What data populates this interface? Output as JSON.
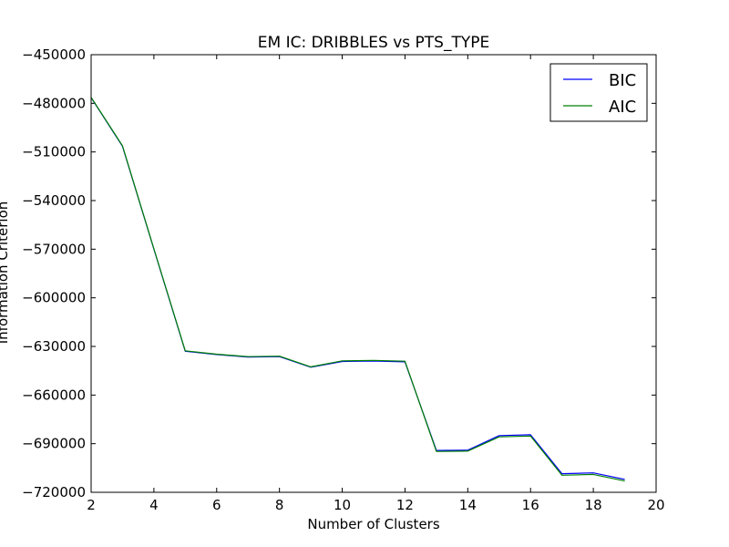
{
  "chart_data": {
    "type": "line",
    "title": "EM IC: DRIBBLES vs PTS_TYPE",
    "xlabel": "Number of Clusters",
    "ylabel": "Information Criterion",
    "xlim": [
      2,
      20
    ],
    "ylim": [
      -720000,
      -450000
    ],
    "xticks": [
      2,
      4,
      6,
      8,
      10,
      12,
      14,
      16,
      18,
      20
    ],
    "yticks": [
      -450000,
      -480000,
      -510000,
      -540000,
      -570000,
      -600000,
      -630000,
      -660000,
      -690000,
      -720000
    ],
    "xtick_labels": [
      "2",
      "4",
      "6",
      "8",
      "10",
      "12",
      "14",
      "16",
      "18",
      "20"
    ],
    "ytick_labels": [
      "−450000",
      "−480000",
      "−510000",
      "−540000",
      "−570000",
      "−600000",
      "−630000",
      "−660000",
      "−690000",
      "−720000"
    ],
    "x": [
      2,
      3,
      4,
      5,
      6,
      7,
      8,
      9,
      10,
      11,
      12,
      13,
      14,
      15,
      16,
      17,
      18,
      19
    ],
    "series": [
      {
        "name": "BIC",
        "color": "#0000ff",
        "values": [
          -476500,
          -506500,
          -570000,
          -633000,
          -635000,
          -636500,
          -636300,
          -642800,
          -639300,
          -639000,
          -639500,
          -694200,
          -694000,
          -685000,
          -684500,
          -708500,
          -708000,
          -712000
        ]
      },
      {
        "name": "AIC",
        "color": "#008000",
        "values": [
          -476300,
          -506200,
          -569800,
          -632700,
          -634800,
          -636300,
          -636000,
          -642600,
          -638900,
          -638600,
          -639100,
          -694800,
          -694600,
          -685800,
          -685300,
          -709500,
          -709000,
          -713000
        ]
      }
    ],
    "legend": {
      "position": "top-right",
      "entries": [
        "BIC",
        "AIC"
      ]
    },
    "grid": false
  }
}
